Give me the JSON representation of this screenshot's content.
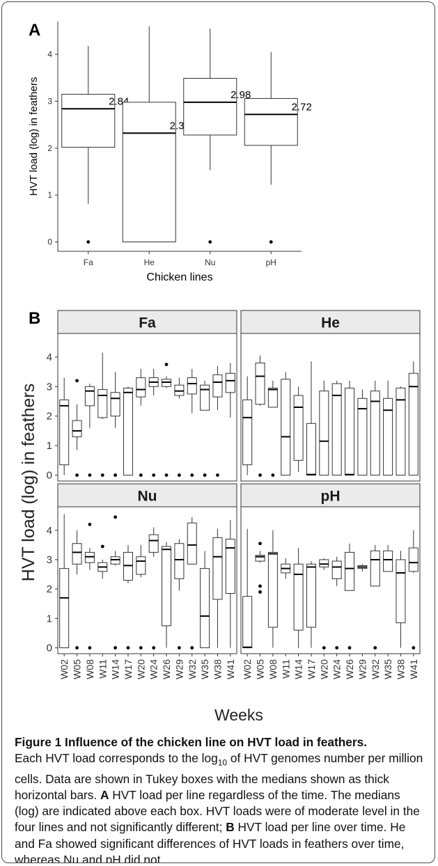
{
  "caption": {
    "title": "Figure 1  Influence of the chicken line on HVT load in feathers.",
    "text_a": "Each HVT load corresponds to the log",
    "text_sub": "10",
    "text_b": " of HVT genomes number per million cells. Data are shown in Tukey boxes with the medians shown as thick horizontal bars. ",
    "label_a": "A",
    "text_c": " HVT load per line regardless of the time. The medians (log) are indicated above each box. HVT loads were of moderate level in the four lines and not significantly different; ",
    "label_b": "B",
    "text_d": " HVT load per line over time. He and Fa showed significant differences of HVT loads in feathers over time, whereas Nu and pH did not."
  },
  "colors": {
    "box_fill": "#ffffff",
    "line": "#333333",
    "strip_fill": "#ebebeb",
    "strip_border": "#333333"
  },
  "chart_data": [
    {
      "type": "box",
      "panel_label": "A",
      "xlabel": "Chicken lines",
      "ylabel": "HVT load (log) in feathers",
      "ylim": [
        -0.2,
        4.7
      ],
      "yticks": [
        0,
        1,
        2,
        3,
        4
      ],
      "grid": false,
      "categories": [
        "Fa",
        "He",
        "Nu",
        "pH"
      ],
      "boxes": [
        {
          "whisker_low": 0.81,
          "q1": 2.02,
          "median": 2.84,
          "q3": 3.15,
          "whisker_high": 4.18,
          "outliers": [
            0
          ],
          "median_label": "2.84"
        },
        {
          "whisker_low": 0.0,
          "q1": 0.0,
          "median": 2.32,
          "q3": 2.98,
          "whisker_high": 4.6,
          "outliers": [],
          "median_label": "2.32"
        },
        {
          "whisker_low": 1.53,
          "q1": 2.28,
          "median": 2.98,
          "q3": 3.49,
          "whisker_high": 4.55,
          "outliers": [
            0
          ],
          "median_label": "2.98"
        },
        {
          "whisker_low": 1.22,
          "q1": 2.06,
          "median": 2.72,
          "q3": 3.06,
          "whisker_high": 4.05,
          "outliers": [
            0
          ],
          "median_label": "2.72"
        }
      ]
    },
    {
      "type": "box",
      "panel_label": "B",
      "xlabel": "Weeks",
      "ylabel": "HVT load (log) in feathers",
      "ylim": [
        -0.2,
        4.8
      ],
      "yticks": [
        0,
        1,
        2,
        3,
        4
      ],
      "grid": false,
      "categories": [
        "W02",
        "W05",
        "W08",
        "W11",
        "W14",
        "W17",
        "W20",
        "W24",
        "W26",
        "W29",
        "W32",
        "W35",
        "W38",
        "W41"
      ],
      "facets": [
        {
          "name": "Fa",
          "boxes": [
            {
              "whisker_low": 0.0,
              "q1": 0.35,
              "median": 2.35,
              "q3": 2.55,
              "whisker_high": 3.3,
              "outliers": []
            },
            {
              "whisker_low": 0.85,
              "q1": 1.3,
              "median": 1.5,
              "q3": 1.85,
              "whisker_high": 2.4,
              "outliers": [
                3.2,
                0
              ]
            },
            {
              "whisker_low": 1.6,
              "q1": 2.35,
              "median": 2.85,
              "q3": 3.0,
              "whisker_high": 3.1,
              "outliers": [
                0
              ]
            },
            {
              "whisker_low": 1.9,
              "q1": 1.95,
              "median": 2.7,
              "q3": 2.9,
              "whisker_high": 4.15,
              "outliers": [
                0
              ]
            },
            {
              "whisker_low": 1.6,
              "q1": 2.0,
              "median": 2.6,
              "q3": 2.8,
              "whisker_high": 3.5,
              "outliers": [
                0
              ]
            },
            {
              "whisker_low": 0.0,
              "q1": 0.0,
              "median": 2.8,
              "q3": 2.95,
              "whisker_high": 3.0,
              "outliers": []
            },
            {
              "whisker_low": 2.35,
              "q1": 2.65,
              "median": 2.9,
              "q3": 3.3,
              "whisker_high": 3.6,
              "outliers": [
                0
              ]
            },
            {
              "whisker_low": 2.7,
              "q1": 3.0,
              "median": 3.15,
              "q3": 3.3,
              "whisker_high": 3.6,
              "outliers": [
                0
              ]
            },
            {
              "whisker_low": 2.95,
              "q1": 3.0,
              "median": 3.15,
              "q3": 3.25,
              "whisker_high": 3.35,
              "outliers": [
                3.75,
                0
              ]
            },
            {
              "whisker_low": 2.6,
              "q1": 2.7,
              "median": 2.85,
              "q3": 3.05,
              "whisker_high": 3.3,
              "outliers": [
                0
              ]
            },
            {
              "whisker_low": 2.1,
              "q1": 2.75,
              "median": 3.1,
              "q3": 3.3,
              "whisker_high": 3.6,
              "outliers": [
                0
              ]
            },
            {
              "whisker_low": 2.2,
              "q1": 2.2,
              "median": 2.9,
              "q3": 3.05,
              "whisker_high": 3.2,
              "outliers": [
                0
              ]
            },
            {
              "whisker_low": 2.2,
              "q1": 2.65,
              "median": 3.15,
              "q3": 3.4,
              "whisker_high": 3.7,
              "outliers": [
                0
              ]
            },
            {
              "whisker_low": 1.95,
              "q1": 2.8,
              "median": 3.2,
              "q3": 3.45,
              "whisker_high": 3.8,
              "outliers": []
            }
          ]
        },
        {
          "name": "He",
          "boxes": [
            {
              "whisker_low": 0.0,
              "q1": 0.35,
              "median": 1.95,
              "q3": 2.55,
              "whisker_high": 3.35,
              "outliers": []
            },
            {
              "whisker_low": 2.35,
              "q1": 2.4,
              "median": 3.35,
              "q3": 3.8,
              "whisker_high": 4.05,
              "outliers": [
                0
              ]
            },
            {
              "whisker_low": 2.3,
              "q1": 2.3,
              "median": 2.9,
              "q3": 2.95,
              "whisker_high": 3.2,
              "outliers": [
                0
              ]
            },
            {
              "whisker_low": 0.0,
              "q1": 0.0,
              "median": 1.3,
              "q3": 3.25,
              "whisker_high": 3.5,
              "outliers": []
            },
            {
              "whisker_low": 0.1,
              "q1": 0.5,
              "median": 2.3,
              "q3": 2.7,
              "whisker_high": 3.0,
              "outliers": []
            },
            {
              "whisker_low": 0.0,
              "q1": 0.0,
              "median": 0.02,
              "q3": 1.75,
              "whisker_high": 3.85,
              "outliers": []
            },
            {
              "whisker_low": 0.0,
              "q1": 0.0,
              "median": 1.15,
              "q3": 2.85,
              "whisker_high": 3.2,
              "outliers": []
            },
            {
              "whisker_low": 0.0,
              "q1": 0.0,
              "median": 2.7,
              "q3": 3.1,
              "whisker_high": 3.2,
              "outliers": []
            },
            {
              "whisker_low": 0.0,
              "q1": 0.0,
              "median": 0.02,
              "q3": 2.95,
              "whisker_high": 3.2,
              "outliers": []
            },
            {
              "whisker_low": 0.0,
              "q1": 0.0,
              "median": 2.25,
              "q3": 2.6,
              "whisker_high": 2.9,
              "outliers": []
            },
            {
              "whisker_low": 0.0,
              "q1": 0.0,
              "median": 2.5,
              "q3": 2.85,
              "whisker_high": 3.2,
              "outliers": []
            },
            {
              "whisker_low": 0.0,
              "q1": 0.0,
              "median": 2.2,
              "q3": 2.6,
              "whisker_high": 3.2,
              "outliers": []
            },
            {
              "whisker_low": 0.0,
              "q1": 0.0,
              "median": 2.55,
              "q3": 2.95,
              "whisker_high": 3.0,
              "outliers": []
            },
            {
              "whisker_low": 0.0,
              "q1": 0.0,
              "median": 3.0,
              "q3": 3.45,
              "whisker_high": 3.85,
              "outliers": []
            }
          ]
        },
        {
          "name": "Nu",
          "boxes": [
            {
              "whisker_low": 0.0,
              "q1": 0.0,
              "median": 1.7,
              "q3": 2.7,
              "whisker_high": 4.55,
              "outliers": []
            },
            {
              "whisker_low": 2.5,
              "q1": 2.85,
              "median": 3.25,
              "q3": 3.55,
              "whisker_high": 4.0,
              "outliers": [
                0
              ]
            },
            {
              "whisker_low": 2.65,
              "q1": 2.9,
              "median": 3.1,
              "q3": 3.25,
              "whisker_high": 3.4,
              "outliers": [
                4.2,
                0
              ]
            },
            {
              "whisker_low": 2.35,
              "q1": 2.6,
              "median": 2.75,
              "q3": 2.9,
              "whisker_high": 3.0,
              "outliers": [
                3.45
              ]
            },
            {
              "whisker_low": 2.8,
              "q1": 2.85,
              "median": 3.0,
              "q3": 3.1,
              "whisker_high": 3.3,
              "outliers": [
                4.45,
                0
              ]
            },
            {
              "whisker_low": 2.2,
              "q1": 2.3,
              "median": 2.8,
              "q3": 3.25,
              "whisker_high": 3.5,
              "outliers": [
                0
              ]
            },
            {
              "whisker_low": 2.4,
              "q1": 2.5,
              "median": 2.95,
              "q3": 3.1,
              "whisker_high": 3.5,
              "outliers": [
                0
              ]
            },
            {
              "whisker_low": 3.1,
              "q1": 3.25,
              "median": 3.65,
              "q3": 3.85,
              "whisker_high": 4.1,
              "outliers": [
                0
              ]
            },
            {
              "whisker_low": 0.0,
              "q1": 0.75,
              "median": 3.35,
              "q3": 3.45,
              "whisker_high": 3.6,
              "outliers": []
            },
            {
              "whisker_low": 1.95,
              "q1": 2.35,
              "median": 3.0,
              "q3": 3.55,
              "whisker_high": 3.7,
              "outliers": [
                0
              ]
            },
            {
              "whisker_low": 2.85,
              "q1": 2.85,
              "median": 3.5,
              "q3": 4.25,
              "whisker_high": 4.45,
              "outliers": [
                0
              ]
            },
            {
              "whisker_low": 0.0,
              "q1": 0.0,
              "median": 1.08,
              "q3": 2.7,
              "whisker_high": 3.3,
              "outliers": []
            },
            {
              "whisker_low": 0.0,
              "q1": 1.65,
              "median": 3.1,
              "q3": 3.75,
              "whisker_high": 4.05,
              "outliers": []
            },
            {
              "whisker_low": 0.0,
              "q1": 1.85,
              "median": 3.4,
              "q3": 3.7,
              "whisker_high": 4.35,
              "outliers": []
            }
          ]
        },
        {
          "name": "pH",
          "boxes": [
            {
              "whisker_low": 0.0,
              "q1": 0.0,
              "median": 0.02,
              "q3": 1.75,
              "whisker_high": 4.05,
              "outliers": []
            },
            {
              "whisker_low": 2.9,
              "q1": 2.95,
              "median": 3.1,
              "q3": 3.15,
              "whisker_high": 3.3,
              "outliers": [
                3.55,
                2.1,
                1.9
              ]
            },
            {
              "whisker_low": 0.0,
              "q1": 0.7,
              "median": 3.2,
              "q3": 3.25,
              "whisker_high": 4.0,
              "outliers": []
            },
            {
              "whisker_low": 2.35,
              "q1": 2.55,
              "median": 2.7,
              "q3": 2.85,
              "whisker_high": 3.05,
              "outliers": []
            },
            {
              "whisker_low": 0.0,
              "q1": 0.6,
              "median": 2.5,
              "q3": 2.85,
              "whisker_high": 3.4,
              "outliers": []
            },
            {
              "whisker_low": 0.0,
              "q1": 0.7,
              "median": 2.75,
              "q3": 2.85,
              "whisker_high": 2.95,
              "outliers": []
            },
            {
              "whisker_low": 2.65,
              "q1": 2.75,
              "median": 2.85,
              "q3": 3.0,
              "whisker_high": 3.05,
              "outliers": [
                0
              ]
            },
            {
              "whisker_low": 2.1,
              "q1": 2.35,
              "median": 2.75,
              "q3": 2.95,
              "whisker_high": 3.1,
              "outliers": [
                0
              ]
            },
            {
              "whisker_low": 1.95,
              "q1": 1.95,
              "median": 2.7,
              "q3": 3.25,
              "whisker_high": 3.55,
              "outliers": [
                0
              ]
            },
            {
              "whisker_low": 2.6,
              "q1": 2.7,
              "median": 2.75,
              "q3": 2.8,
              "whisker_high": 2.85,
              "outliers": []
            },
            {
              "whisker_low": 2.1,
              "q1": 2.1,
              "median": 3.0,
              "q3": 3.3,
              "whisker_high": 3.5,
              "outliers": [
                0
              ]
            },
            {
              "whisker_low": 2.6,
              "q1": 2.6,
              "median": 3.0,
              "q3": 3.3,
              "whisker_high": 3.5,
              "outliers": []
            },
            {
              "whisker_low": 0.0,
              "q1": 0.85,
              "median": 2.55,
              "q3": 3.0,
              "whisker_high": 3.3,
              "outliers": []
            },
            {
              "whisker_low": 2.55,
              "q1": 2.6,
              "median": 2.9,
              "q3": 3.4,
              "whisker_high": 4.0,
              "outliers": [
                0
              ]
            }
          ]
        }
      ]
    }
  ]
}
